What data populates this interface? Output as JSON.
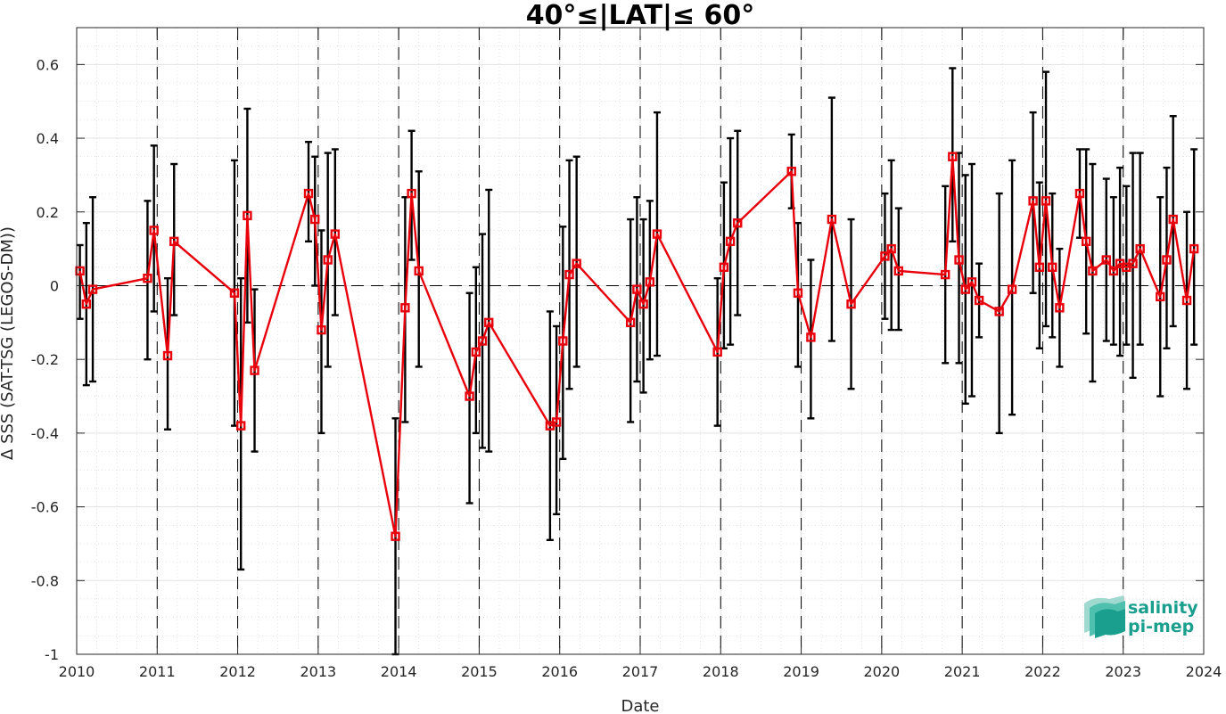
{
  "chart_data": {
    "type": "line",
    "title": "40°≤|LAT|≤ 60°",
    "xlabel": "Date",
    "ylabel": "Δ SSS (SAT-TSG (LEGOS-DM))",
    "xlim": [
      2010.0,
      2024.0
    ],
    "ylim": [
      -1.0,
      0.7
    ],
    "x_ticks": [
      2010,
      2011,
      2012,
      2013,
      2014,
      2015,
      2016,
      2017,
      2018,
      2019,
      2020,
      2021,
      2022,
      2023,
      2024
    ],
    "x_tick_labels": [
      "2010",
      "2011",
      "2012",
      "2013",
      "2014",
      "2015",
      "2016",
      "2017",
      "2018",
      "2019",
      "2020",
      "2021",
      "2022",
      "2023",
      "2024"
    ],
    "y_ticks": [
      -1,
      -0.8,
      -0.6,
      -0.4,
      -0.2,
      0,
      0.2,
      0.4,
      0.6
    ],
    "y_tick_labels": [
      "-1",
      "-0.8",
      "-0.6",
      "-0.4",
      "-0.2",
      "0",
      "0.2",
      "0.4",
      "0.6"
    ],
    "grid": true,
    "year_dividers": [
      2011,
      2012,
      2013,
      2014,
      2015,
      2016,
      2017,
      2018,
      2019,
      2020,
      2021,
      2022,
      2023
    ],
    "zero_line": 0,
    "series": [
      {
        "color": "#e8000b",
        "error_color": "#000000",
        "points": [
          {
            "x": 2010.04,
            "y": 0.04,
            "lo": -0.09,
            "hi": 0.11
          },
          {
            "x": 2010.12,
            "y": -0.05,
            "lo": -0.27,
            "hi": 0.17
          },
          {
            "x": 2010.2,
            "y": -0.01,
            "lo": -0.26,
            "hi": 0.24
          },
          {
            "x": 2010.88,
            "y": 0.02,
            "lo": -0.2,
            "hi": 0.23
          },
          {
            "x": 2010.96,
            "y": 0.15,
            "lo": -0.07,
            "hi": 0.38
          },
          {
            "x": 2011.13,
            "y": -0.19,
            "lo": -0.39,
            "hi": 0.02
          },
          {
            "x": 2011.21,
            "y": 0.12,
            "lo": -0.08,
            "hi": 0.33
          },
          {
            "x": 2011.96,
            "y": -0.02,
            "lo": -0.38,
            "hi": 0.34
          },
          {
            "x": 2012.04,
            "y": -0.38,
            "lo": -0.77,
            "hi": 0.02
          },
          {
            "x": 2012.12,
            "y": 0.19,
            "lo": -0.1,
            "hi": 0.48
          },
          {
            "x": 2012.21,
            "y": -0.23,
            "lo": -0.45,
            "hi": -0.01
          },
          {
            "x": 2012.88,
            "y": 0.25,
            "lo": 0.12,
            "hi": 0.39
          },
          {
            "x": 2012.96,
            "y": 0.18,
            "lo": 0.0,
            "hi": 0.35
          },
          {
            "x": 2013.04,
            "y": -0.12,
            "lo": -0.4,
            "hi": 0.15
          },
          {
            "x": 2013.12,
            "y": 0.07,
            "lo": -0.22,
            "hi": 0.36
          },
          {
            "x": 2013.21,
            "y": 0.14,
            "lo": -0.08,
            "hi": 0.37
          },
          {
            "x": 2013.96,
            "y": -0.68,
            "lo": -1.0,
            "hi": -0.36
          },
          {
            "x": 2014.08,
            "y": -0.06,
            "lo": -0.37,
            "hi": 0.24
          },
          {
            "x": 2014.16,
            "y": 0.25,
            "lo": 0.07,
            "hi": 0.42
          },
          {
            "x": 2014.25,
            "y": 0.04,
            "lo": -0.22,
            "hi": 0.31
          },
          {
            "x": 2014.88,
            "y": -0.3,
            "lo": -0.59,
            "hi": -0.02
          },
          {
            "x": 2014.96,
            "y": -0.18,
            "lo": -0.4,
            "hi": 0.05
          },
          {
            "x": 2015.04,
            "y": -0.15,
            "lo": -0.44,
            "hi": 0.14
          },
          {
            "x": 2015.12,
            "y": -0.1,
            "lo": -0.45,
            "hi": 0.26
          },
          {
            "x": 2015.88,
            "y": -0.38,
            "lo": -0.69,
            "hi": -0.07
          },
          {
            "x": 2015.96,
            "y": -0.37,
            "lo": -0.62,
            "hi": -0.11
          },
          {
            "x": 2016.04,
            "y": -0.15,
            "lo": -0.47,
            "hi": 0.16
          },
          {
            "x": 2016.12,
            "y": 0.03,
            "lo": -0.28,
            "hi": 0.34
          },
          {
            "x": 2016.21,
            "y": 0.06,
            "lo": -0.22,
            "hi": 0.35
          },
          {
            "x": 2016.88,
            "y": -0.1,
            "lo": -0.37,
            "hi": 0.18
          },
          {
            "x": 2016.96,
            "y": -0.01,
            "lo": -0.26,
            "hi": 0.24
          },
          {
            "x": 2017.04,
            "y": -0.05,
            "lo": -0.29,
            "hi": 0.18
          },
          {
            "x": 2017.12,
            "y": 0.01,
            "lo": -0.2,
            "hi": 0.23
          },
          {
            "x": 2017.21,
            "y": 0.14,
            "lo": -0.19,
            "hi": 0.47
          },
          {
            "x": 2017.96,
            "y": -0.18,
            "lo": -0.38,
            "hi": 0.02
          },
          {
            "x": 2018.04,
            "y": 0.05,
            "lo": -0.17,
            "hi": 0.28
          },
          {
            "x": 2018.12,
            "y": 0.12,
            "lo": -0.16,
            "hi": 0.4
          },
          {
            "x": 2018.21,
            "y": 0.17,
            "lo": -0.08,
            "hi": 0.42
          },
          {
            "x": 2018.88,
            "y": 0.31,
            "lo": 0.21,
            "hi": 0.41
          },
          {
            "x": 2018.96,
            "y": -0.02,
            "lo": -0.22,
            "hi": 0.17
          },
          {
            "x": 2019.12,
            "y": -0.14,
            "lo": -0.36,
            "hi": 0.07
          },
          {
            "x": 2019.38,
            "y": 0.18,
            "lo": -0.15,
            "hi": 0.51
          },
          {
            "x": 2019.62,
            "y": -0.05,
            "lo": -0.28,
            "hi": 0.18
          },
          {
            "x": 2020.04,
            "y": 0.08,
            "lo": -0.09,
            "hi": 0.25
          },
          {
            "x": 2020.12,
            "y": 0.1,
            "lo": -0.12,
            "hi": 0.34
          },
          {
            "x": 2020.21,
            "y": 0.04,
            "lo": -0.12,
            "hi": 0.21
          },
          {
            "x": 2020.79,
            "y": 0.03,
            "lo": -0.21,
            "hi": 0.27
          },
          {
            "x": 2020.88,
            "y": 0.35,
            "lo": 0.12,
            "hi": 0.59
          },
          {
            "x": 2020.96,
            "y": 0.07,
            "lo": -0.21,
            "hi": 0.36
          },
          {
            "x": 2021.04,
            "y": -0.01,
            "lo": -0.32,
            "hi": 0.3
          },
          {
            "x": 2021.12,
            "y": 0.01,
            "lo": -0.3,
            "hi": 0.33
          },
          {
            "x": 2021.21,
            "y": -0.04,
            "lo": -0.14,
            "hi": 0.06
          },
          {
            "x": 2021.46,
            "y": -0.07,
            "lo": -0.4,
            "hi": 0.25
          },
          {
            "x": 2021.62,
            "y": -0.01,
            "lo": -0.35,
            "hi": 0.34
          },
          {
            "x": 2021.88,
            "y": 0.23,
            "lo": -0.02,
            "hi": 0.47
          },
          {
            "x": 2021.96,
            "y": 0.05,
            "lo": -0.17,
            "hi": 0.28
          },
          {
            "x": 2022.04,
            "y": 0.23,
            "lo": -0.11,
            "hi": 0.58
          },
          {
            "x": 2022.12,
            "y": 0.05,
            "lo": -0.14,
            "hi": 0.25
          },
          {
            "x": 2022.21,
            "y": -0.06,
            "lo": -0.22,
            "hi": 0.1
          },
          {
            "x": 2022.46,
            "y": 0.25,
            "lo": 0.13,
            "hi": 0.37
          },
          {
            "x": 2022.54,
            "y": 0.12,
            "lo": -0.13,
            "hi": 0.37
          },
          {
            "x": 2022.62,
            "y": 0.04,
            "lo": -0.26,
            "hi": 0.33
          },
          {
            "x": 2022.79,
            "y": 0.07,
            "lo": -0.15,
            "hi": 0.29
          },
          {
            "x": 2022.88,
            "y": 0.04,
            "lo": -0.16,
            "hi": 0.24
          },
          {
            "x": 2022.96,
            "y": 0.06,
            "lo": -0.19,
            "hi": 0.32
          },
          {
            "x": 2023.04,
            "y": 0.05,
            "lo": -0.16,
            "hi": 0.27
          },
          {
            "x": 2023.12,
            "y": 0.06,
            "lo": -0.25,
            "hi": 0.36
          },
          {
            "x": 2023.21,
            "y": 0.1,
            "lo": -0.16,
            "hi": 0.36
          },
          {
            "x": 2023.46,
            "y": -0.03,
            "lo": -0.3,
            "hi": 0.24
          },
          {
            "x": 2023.54,
            "y": 0.07,
            "lo": -0.17,
            "hi": 0.32
          },
          {
            "x": 2023.62,
            "y": 0.18,
            "lo": -0.11,
            "hi": 0.46
          },
          {
            "x": 2023.79,
            "y": -0.04,
            "lo": -0.28,
            "hi": 0.2
          },
          {
            "x": 2023.88,
            "y": 0.1,
            "lo": -0.16,
            "hi": 0.37
          }
        ]
      }
    ]
  },
  "logo": {
    "line1": "salinity",
    "line2": "pi-mep",
    "color": "#1a9f8f"
  }
}
